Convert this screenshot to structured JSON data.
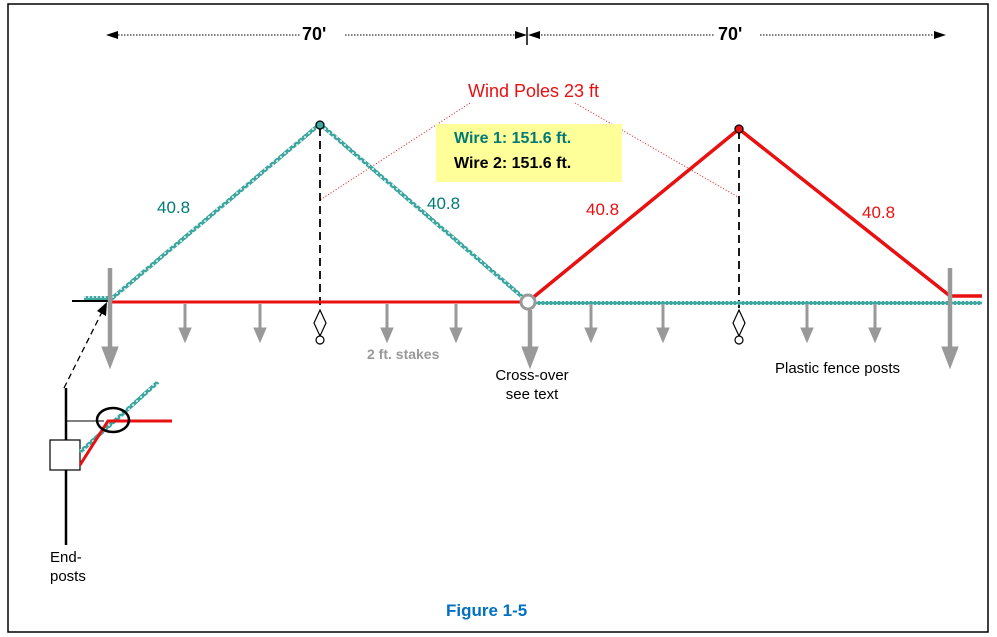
{
  "labels": {
    "dim_left": "70'",
    "dim_right": "70'",
    "wind_poles": "Wind Poles 23 ft",
    "wire1": "Wire 1: 151.6 ft.",
    "wire2": "Wire 2: 151.6 ft.",
    "seg1": "40.8",
    "seg2": "40.8",
    "seg3": "40.8",
    "seg4": "40.8",
    "stakes": "2 ft. stakes",
    "crossover_1": "Cross-over",
    "crossover_2": "see text",
    "fence_posts": "Plastic fence posts",
    "endposts_1": "End-",
    "endposts_2": "posts",
    "figure": "Figure 1-5"
  },
  "colors": {
    "wire1": "#3fa6a0",
    "wire2": "#e81010",
    "teal_text": "#007a78",
    "red_text": "#e81010",
    "post": "#999999",
    "figure_blue": "#0070c0",
    "wire_box_bg": "#ffff99"
  }
}
